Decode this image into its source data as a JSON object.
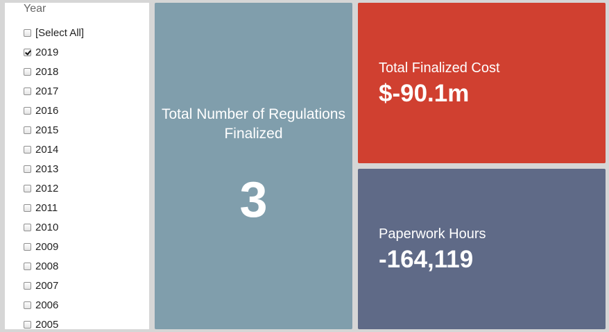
{
  "filter": {
    "title": "Year",
    "items": [
      {
        "label": "[Select All]",
        "checked": false
      },
      {
        "label": "2019",
        "checked": true
      },
      {
        "label": "2018",
        "checked": false
      },
      {
        "label": "2017",
        "checked": false
      },
      {
        "label": "2016",
        "checked": false
      },
      {
        "label": "2015",
        "checked": false
      },
      {
        "label": "2014",
        "checked": false
      },
      {
        "label": "2013",
        "checked": false
      },
      {
        "label": "2012",
        "checked": false
      },
      {
        "label": "2011",
        "checked": false
      },
      {
        "label": "2010",
        "checked": false
      },
      {
        "label": "2009",
        "checked": false
      },
      {
        "label": "2008",
        "checked": false
      },
      {
        "label": "2007",
        "checked": false
      },
      {
        "label": "2006",
        "checked": false
      },
      {
        "label": "2005",
        "checked": false
      }
    ]
  },
  "tiles": {
    "count": {
      "label": "Total Number of Regulations Finalized",
      "value": "3",
      "color": "#809eac"
    },
    "cost": {
      "label": "Total Finalized Cost",
      "value": "$-90.1m",
      "color": "#d04030"
    },
    "hours": {
      "label": "Paperwork Hours",
      "value": "-164,119",
      "color": "#5f6a87"
    }
  }
}
